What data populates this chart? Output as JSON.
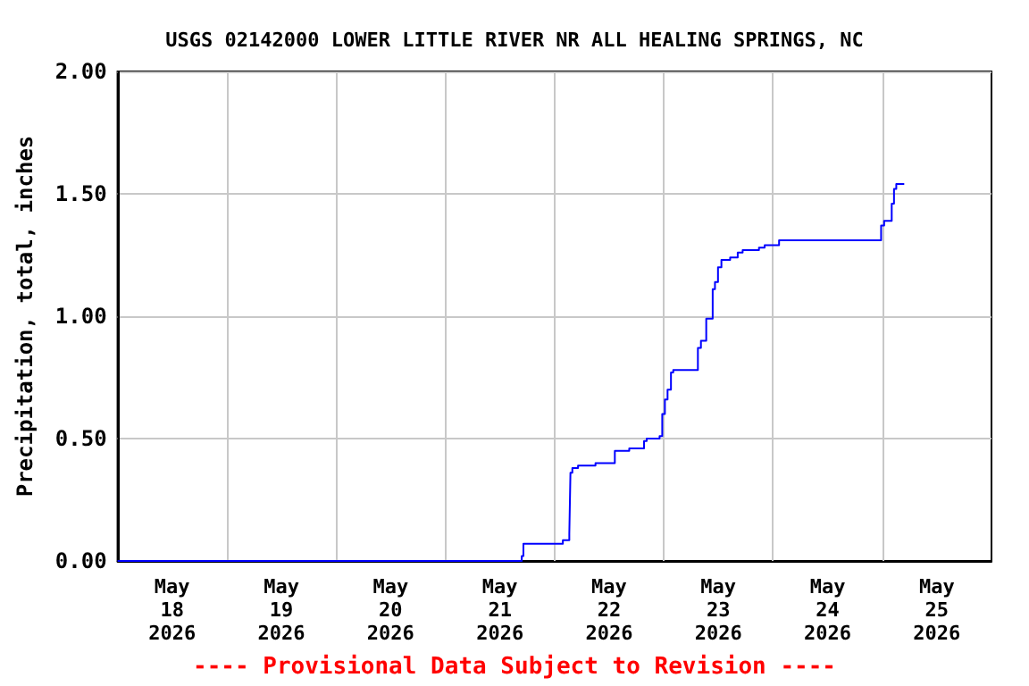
{
  "chart_data": {
    "type": "step",
    "title": "USGS 02142000 LOWER LITTLE RIVER NR ALL HEALING SPRINGS, NC",
    "ylabel": "Precipitation, total, inches",
    "x": [
      "2026-05-18T00:00",
      "2026-05-21T16:48",
      "2026-05-21T17:10",
      "2026-05-22T01:50",
      "2026-05-22T03:15",
      "2026-05-22T03:30",
      "2026-05-22T03:55",
      "2026-05-22T05:10",
      "2026-05-22T09:00",
      "2026-05-22T13:15",
      "2026-05-22T16:25",
      "2026-05-22T19:40",
      "2026-05-22T20:15",
      "2026-05-22T23:05",
      "2026-05-22T23:40",
      "2026-05-23T00:15",
      "2026-05-23T00:50",
      "2026-05-23T01:35",
      "2026-05-23T02:05",
      "2026-05-23T07:30",
      "2026-05-23T08:10",
      "2026-05-23T09:20",
      "2026-05-23T10:45",
      "2026-05-23T11:15",
      "2026-05-23T11:55",
      "2026-05-23T12:40",
      "2026-05-23T14:35",
      "2026-05-23T16:15",
      "2026-05-23T17:20",
      "2026-05-23T20:55",
      "2026-05-23T22:10",
      "2026-05-24T01:20",
      "2026-05-24T23:45",
      "2026-05-25T00:25",
      "2026-05-25T02:05",
      "2026-05-25T02:35",
      "2026-05-25T03:05",
      "2026-05-25T04:50"
    ],
    "series": [
      {
        "color": "#0000ff",
        "values": [
          0,
          0.02,
          0.07,
          0.085,
          0.11,
          0.36,
          0.38,
          0.39,
          0.4,
          0.45,
          0.46,
          0.49,
          0.5,
          0.51,
          0.6,
          0.66,
          0.7,
          0.77,
          0.78,
          0.87,
          0.9,
          0.99,
          1.11,
          1.14,
          1.2,
          1.23,
          1.24,
          1.26,
          1.27,
          1.28,
          1.29,
          1.31,
          1.37,
          1.39,
          1.46,
          1.52,
          1.54,
          1.54
        ]
      }
    ],
    "xlim": [
      "2026-05-18",
      "2026-05-26"
    ],
    "xticks": [
      {
        "value": "2026-05-18T12:00",
        "label": "May 18 2026"
      },
      {
        "value": "2026-05-19T00:00",
        "label": null
      },
      {
        "value": "2026-05-19T12:00",
        "label": "May 19 2026"
      },
      {
        "value": "2026-05-20T00:00",
        "label": null
      },
      {
        "value": "2026-05-20T12:00",
        "label": "May 20 2026"
      },
      {
        "value": "2026-05-21T00:00",
        "label": null
      },
      {
        "value": "2026-05-21T12:00",
        "label": "May 21 2026"
      },
      {
        "value": "2026-05-22T00:00",
        "label": null
      },
      {
        "value": "2026-05-22T12:00",
        "label": "May 22 2026"
      },
      {
        "value": "2026-05-23T00:00",
        "label": null
      },
      {
        "value": "2026-05-23T12:00",
        "label": "May 23 2026"
      },
      {
        "value": "2026-05-24T00:00",
        "label": null
      },
      {
        "value": "2026-05-24T12:00",
        "label": "May 24 2026"
      },
      {
        "value": "2026-05-25T00:00",
        "label": null
      },
      {
        "value": "2026-05-25T12:00",
        "label": "May 25 2026"
      }
    ],
    "ylim": [
      0,
      2
    ],
    "yticks": [
      {
        "value": 0,
        "label": "0.00"
      },
      {
        "value": 0.5,
        "label": "0.50"
      },
      {
        "value": 1,
        "label": "1.00"
      },
      {
        "value": 1.5,
        "label": "1.50"
      },
      {
        "value": 2,
        "label": "2.00"
      }
    ],
    "grid": true,
    "marker": "none",
    "line_style": "solid",
    "annotations": [
      "---- Provisional Data Subject to Revision ----"
    ]
  }
}
